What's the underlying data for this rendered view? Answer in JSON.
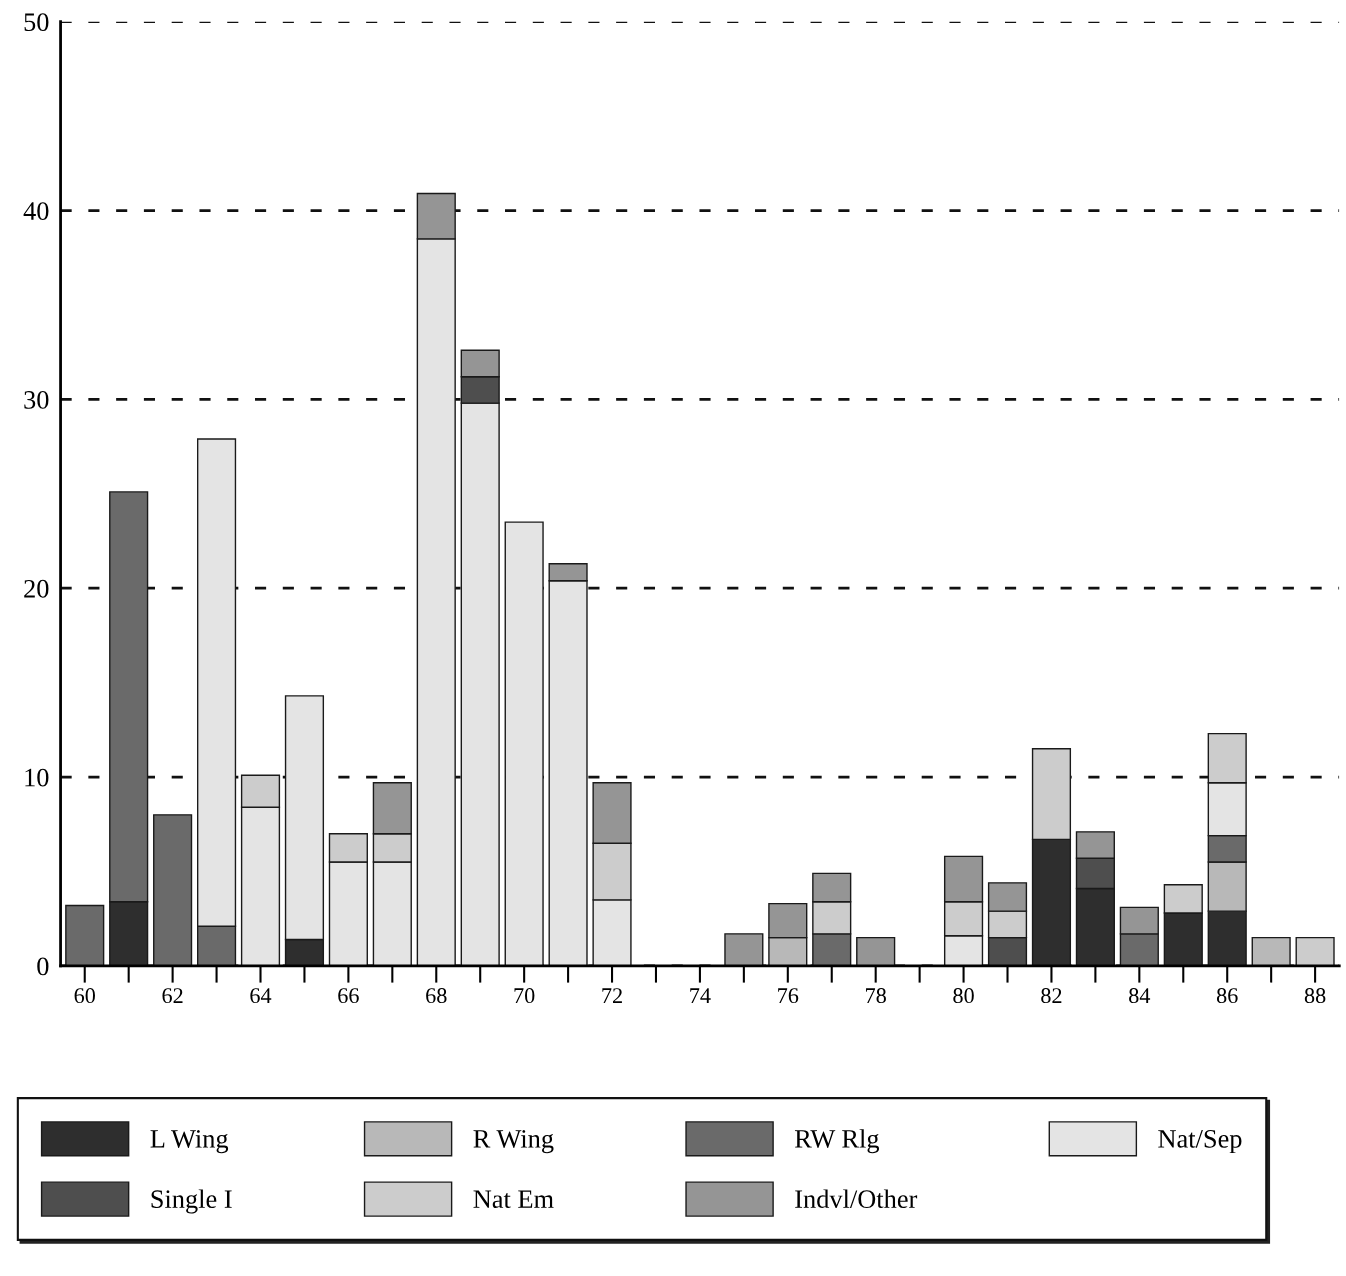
{
  "chart_data": {
    "type": "bar",
    "stacked": true,
    "categories": [
      "60",
      null,
      "62",
      null,
      "64",
      null,
      "66",
      null,
      "68",
      null,
      "70",
      null,
      "72",
      null,
      "74",
      null,
      "76",
      null,
      "78",
      null,
      "80",
      null,
      "82",
      null,
      "84",
      null,
      "86",
      null,
      "88"
    ],
    "series": [
      {
        "name": "L Wing",
        "color": "#2e2e2e",
        "values": [
          null,
          3.4,
          null,
          null,
          null,
          1.4,
          null,
          null,
          null,
          null,
          null,
          null,
          null,
          null,
          null,
          null,
          null,
          null,
          null,
          null,
          null,
          null,
          6.7,
          4.1,
          null,
          2.8,
          2.9,
          null,
          null
        ]
      },
      {
        "name": "R Wing",
        "color": "#b8b8b8",
        "values": [
          null,
          null,
          null,
          null,
          null,
          null,
          null,
          null,
          null,
          null,
          null,
          null,
          null,
          null,
          null,
          null,
          1.5,
          null,
          null,
          null,
          null,
          null,
          null,
          null,
          null,
          null,
          2.6,
          1.5,
          null
        ]
      },
      {
        "name": "RW Rlg",
        "color": "#6a6a6a",
        "values": [
          3.2,
          21.7,
          8.0,
          2.1,
          null,
          null,
          null,
          null,
          null,
          null,
          null,
          null,
          null,
          null,
          null,
          null,
          null,
          1.7,
          null,
          null,
          null,
          null,
          null,
          null,
          1.7,
          null,
          1.4,
          null,
          null
        ]
      },
      {
        "name": "Nat/Sep",
        "color": "#e4e4e4",
        "values": [
          null,
          null,
          null,
          25.8,
          8.4,
          12.9,
          5.5,
          5.5,
          38.5,
          29.8,
          23.5,
          20.4,
          3.5,
          null,
          null,
          null,
          null,
          null,
          null,
          null,
          1.6,
          null,
          null,
          null,
          null,
          null,
          2.8,
          null,
          null
        ]
      },
      {
        "name": "Single I",
        "color": "#4e4e4e",
        "values": [
          null,
          null,
          null,
          null,
          null,
          null,
          null,
          null,
          null,
          1.4,
          null,
          null,
          null,
          null,
          null,
          null,
          null,
          null,
          null,
          null,
          null,
          1.5,
          null,
          1.6,
          null,
          null,
          null,
          null,
          null
        ]
      },
      {
        "name": "Nat Em",
        "color": "#cccccc",
        "values": [
          null,
          null,
          null,
          null,
          1.7,
          null,
          1.5,
          1.5,
          null,
          null,
          null,
          null,
          3.0,
          null,
          null,
          null,
          null,
          1.7,
          null,
          null,
          1.8,
          1.4,
          4.8,
          null,
          null,
          1.5,
          2.6,
          null,
          1.5
        ]
      },
      {
        "name": "Indvl/Other",
        "color": "#959595",
        "values": [
          null,
          null,
          null,
          null,
          null,
          null,
          null,
          2.7,
          2.4,
          1.4,
          null,
          0.9,
          3.2,
          null,
          null,
          1.7,
          1.8,
          1.5,
          1.5,
          null,
          2.4,
          1.5,
          null,
          1.4,
          1.4,
          null,
          null,
          null,
          null
        ]
      }
    ],
    "ylim": [
      0,
      50
    ],
    "yticks": [
      0,
      10,
      20,
      30,
      40,
      50
    ],
    "grid": "y",
    "legend": "bottom"
  }
}
